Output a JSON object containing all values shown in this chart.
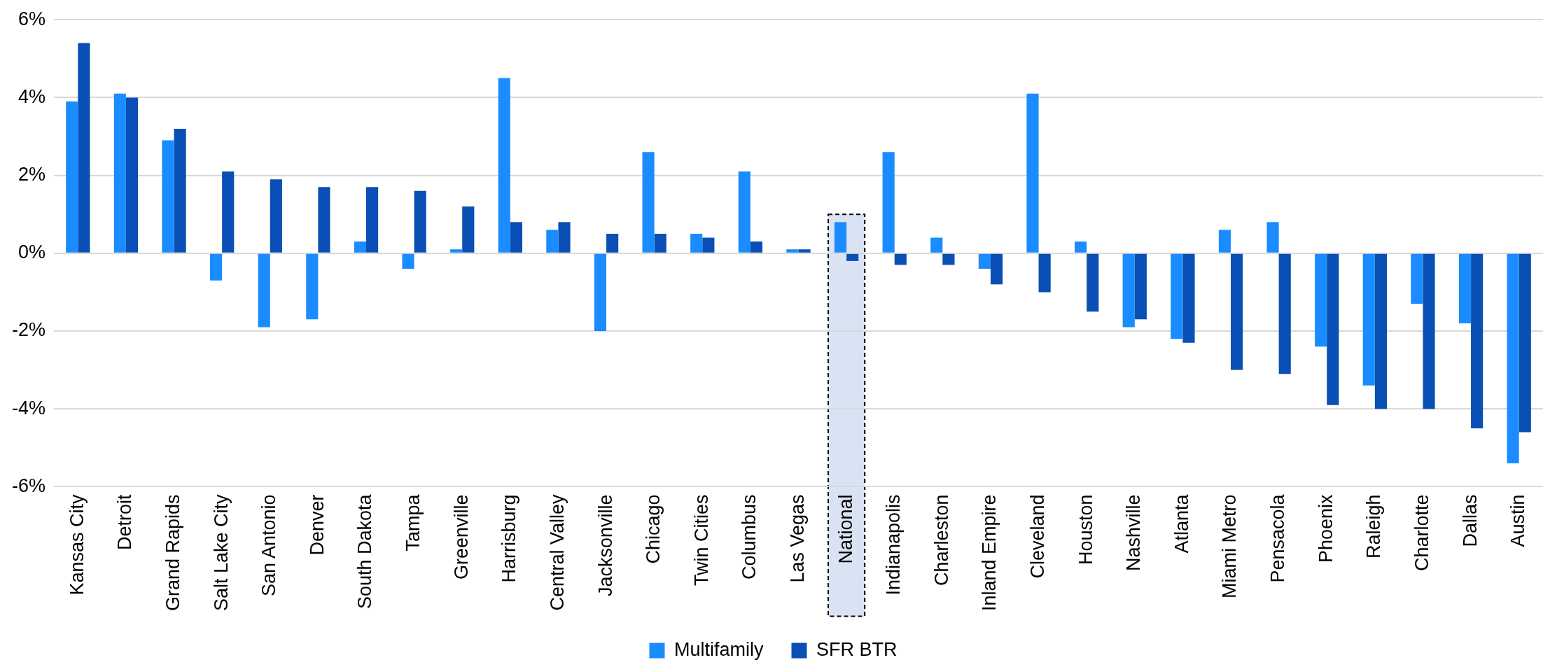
{
  "chart_data": {
    "type": "bar",
    "categories": [
      "Kansas City",
      "Detroit",
      "Grand Rapids",
      "Salt Lake City",
      "San Antonio",
      "Denver",
      "South Dakota",
      "Tampa",
      "Greenville",
      "Harrisburg",
      "Central Valley",
      "Jacksonville",
      "Chicago",
      "Twin Cities",
      "Columbus",
      "Las Vegas",
      "National",
      "Indianapolis",
      "Charleston",
      "Inland Empire",
      "Cleveland",
      "Houston",
      "Nashville",
      "Atlanta",
      "Miami Metro",
      "Pensacola",
      "Phoenix",
      "Raleigh",
      "Charlotte",
      "Dallas",
      "Austin"
    ],
    "series": [
      {
        "name": "Multifamily",
        "color": "#1a8cff",
        "values": [
          3.9,
          4.1,
          2.9,
          -0.7,
          -1.9,
          -1.7,
          0.3,
          -0.4,
          0.1,
          4.5,
          0.6,
          -2.0,
          2.6,
          0.5,
          2.1,
          0.1,
          0.8,
          2.6,
          0.4,
          -0.4,
          4.1,
          0.3,
          -1.9,
          -2.2,
          0.6,
          0.8,
          -2.4,
          -3.4,
          -1.3,
          -1.8,
          -5.4
        ]
      },
      {
        "name": "SFR BTR",
        "color": "#0a4fb5",
        "values": [
          5.4,
          4.0,
          3.2,
          2.1,
          1.9,
          1.7,
          1.7,
          1.6,
          1.2,
          0.8,
          0.8,
          0.5,
          0.5,
          0.4,
          0.3,
          0.1,
          -0.2,
          -0.3,
          -0.3,
          -0.8,
          -1.0,
          -1.5,
          -1.7,
          -2.3,
          -3.0,
          -3.1,
          -3.9,
          -4.0,
          -4.0,
          -4.5,
          -4.6
        ]
      }
    ],
    "ylim": [
      -6,
      6
    ],
    "yticks": [
      {
        "value": -6,
        "label": "-6%"
      },
      {
        "value": -4,
        "label": "-4%"
      },
      {
        "value": -2,
        "label": "-2%"
      },
      {
        "value": 0,
        "label": "0%"
      },
      {
        "value": 2,
        "label": "2%"
      },
      {
        "value": 4,
        "label": "4%"
      },
      {
        "value": 6,
        "label": "6%"
      }
    ],
    "bands": [
      {
        "axis": "x",
        "from": "National",
        "to": "National",
        "color": "#dae3f3"
      }
    ],
    "grid": "y",
    "legend": "bottom"
  }
}
